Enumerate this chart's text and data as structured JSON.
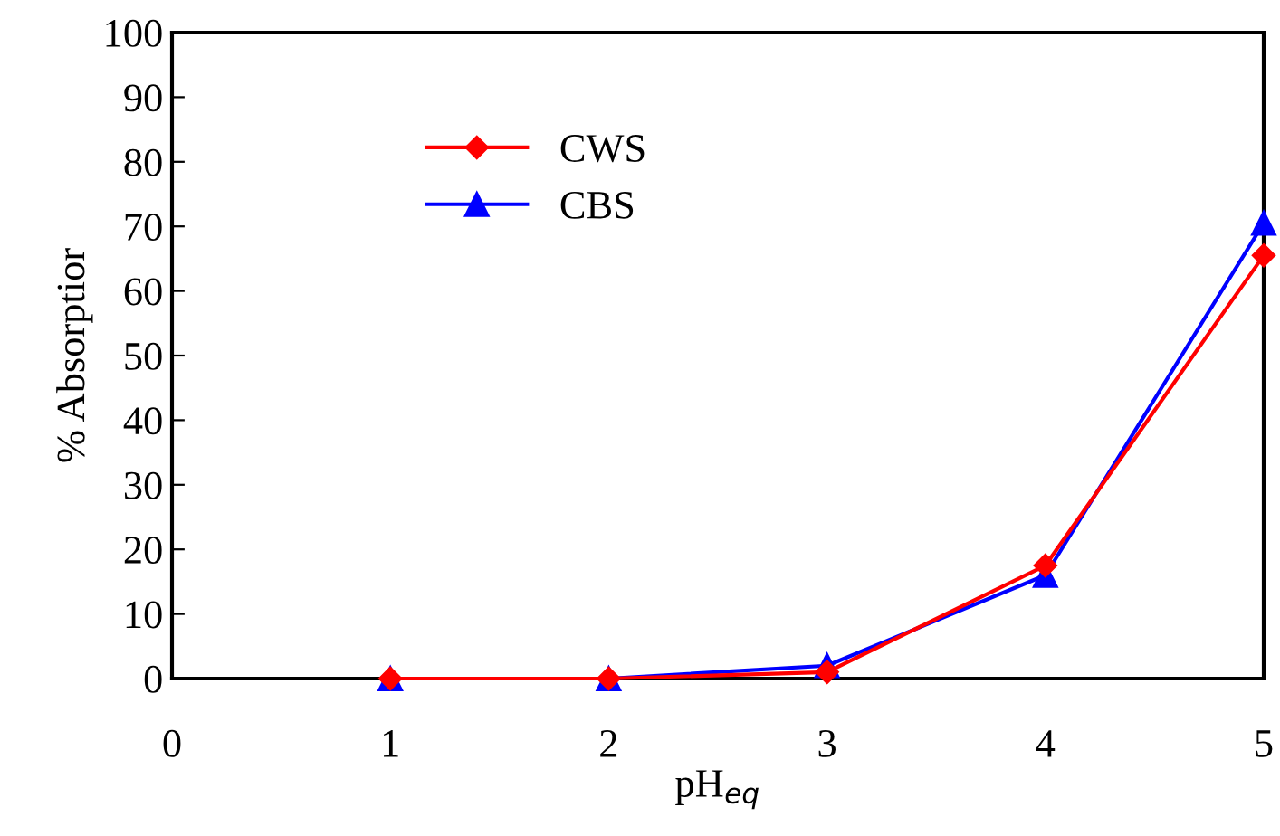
{
  "chart_data": {
    "type": "line",
    "xlabel": "pH$_{eq}$",
    "ylabel": "% Absorptior",
    "x": [
      1,
      2,
      3,
      4,
      5
    ],
    "series": [
      {
        "name": "CWS",
        "color": "#ff0000",
        "marker": "diamond",
        "values": [
          0,
          0,
          1,
          17.5,
          65.5
        ]
      },
      {
        "name": "CBS",
        "color": "#0000ff",
        "marker": "triangle",
        "values": [
          0,
          0,
          2,
          16,
          70.5
        ]
      }
    ],
    "xlim": [
      0,
      5
    ],
    "xticks": [
      0,
      1,
      2,
      3,
      4,
      5
    ],
    "ylim": [
      0,
      100
    ],
    "yticks": [
      0,
      10,
      20,
      30,
      40,
      50,
      60,
      70,
      80,
      90,
      100
    ],
    "grid": false,
    "legend": "top left",
    "line_style": "solid"
  }
}
